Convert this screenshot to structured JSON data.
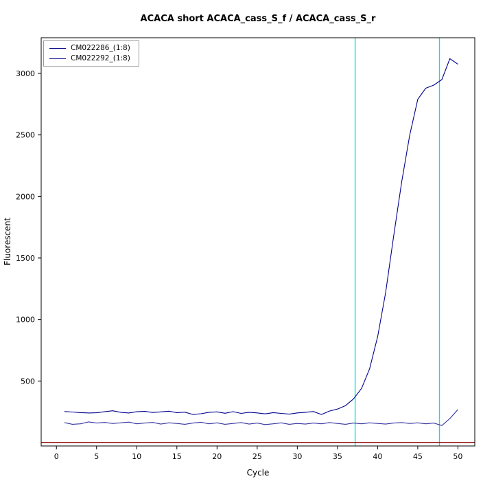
{
  "title": "ACACA short ACACA_cass_S_f / ACACA_cass_S_r",
  "chart_data": {
    "type": "line",
    "title": "ACACA short ACACA_cass_S_f / ACACA_cass_S_r",
    "xlabel": "Cycle",
    "ylabel": "Fluorescent",
    "xlim": [
      -1.9,
      52.1
    ],
    "ylim": [
      -28,
      3290
    ],
    "xticks": [
      0,
      5,
      10,
      15,
      20,
      25,
      30,
      35,
      40,
      45,
      50
    ],
    "yticks": [
      500,
      1000,
      1500,
      2000,
      2500,
      3000
    ],
    "grid": false,
    "legend_position": "top-left",
    "x": [
      1,
      2,
      3,
      4,
      5,
      6,
      7,
      8,
      9,
      10,
      11,
      12,
      13,
      14,
      15,
      16,
      17,
      18,
      19,
      20,
      21,
      22,
      23,
      24,
      25,
      26,
      27,
      28,
      29,
      30,
      31,
      32,
      33,
      34,
      35,
      36,
      37,
      38,
      39,
      40,
      41,
      42,
      43,
      44,
      45,
      46,
      47,
      48,
      49,
      50
    ],
    "series": [
      {
        "name": "CM022286_(1:8)",
        "color": "#00008B",
        "values": [
          252,
          248,
          243,
          240,
          242,
          250,
          258,
          246,
          240,
          250,
          253,
          244,
          249,
          255,
          243,
          247,
          228,
          234,
          246,
          249,
          238,
          251,
          237,
          246,
          241,
          233,
          243,
          237,
          231,
          241,
          246,
          252,
          228,
          256,
          272,
          300,
          355,
          440,
          600,
          860,
          1220,
          1680,
          2120,
          2500,
          2790,
          2880,
          2905,
          2950,
          3120,
          3075
        ]
      },
      {
        "name": "CM022292_(1:8)",
        "color": "#3333A0",
        "values": [
          162,
          148,
          152,
          168,
          158,
          163,
          155,
          160,
          166,
          152,
          158,
          163,
          150,
          160,
          155,
          148,
          158,
          165,
          152,
          160,
          148,
          155,
          162,
          150,
          158,
          146,
          152,
          160,
          148,
          155,
          150,
          158,
          152,
          162,
          155,
          148,
          158,
          152,
          160,
          155,
          150,
          158,
          162,
          155,
          160,
          152,
          158,
          138,
          195,
          268
        ]
      }
    ],
    "cutoff_lines": {
      "color": "#00E6E6",
      "x": [
        37.2,
        47.7
      ]
    },
    "baseline": {
      "color": "#8B0000",
      "y": 0
    }
  }
}
